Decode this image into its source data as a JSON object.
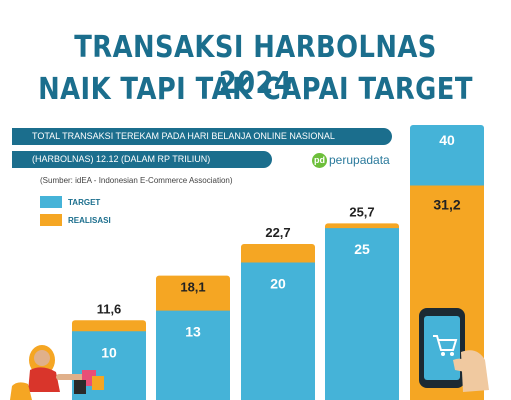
{
  "header": {
    "title_line1": "TRANSAKSI HARBOLNAS 2024",
    "title_line2": "NAIK TAPI TAK CAPAI TARGET",
    "subtitle_line1": "TOTAL TRANSAKSI TEREKAM PADA HARI BELANJA ONLINE NASIONAL",
    "subtitle_line2": "(HARBOLNAS) 12.12 (DALAM RP TRILIUN)",
    "source": "(Sumber: idEA - Indonesian E-Commerce Association)",
    "logo_text": "perupadata",
    "logo_mark": "pd"
  },
  "legend": {
    "target_label": "TARGET",
    "realisasi_label": "REALISASI"
  },
  "colors": {
    "target": "#45b3d8",
    "realisasi": "#f5a623",
    "title": "#1b6e8d"
  },
  "chart_data": {
    "type": "bar",
    "categories": [
      "",
      "",
      "",
      "",
      ""
    ],
    "series": [
      {
        "name": "TARGET",
        "values": [
          10,
          13,
          20,
          25,
          40
        ],
        "labels": [
          "10",
          "13",
          "20",
          "25",
          "40"
        ]
      },
      {
        "name": "REALISASI",
        "values": [
          11.6,
          18.1,
          22.7,
          25.7,
          31.2
        ],
        "labels": [
          "11,6",
          "18,1",
          "22,7",
          "25,7",
          "31,2"
        ]
      }
    ],
    "xlabel": "",
    "ylabel": ""
  }
}
